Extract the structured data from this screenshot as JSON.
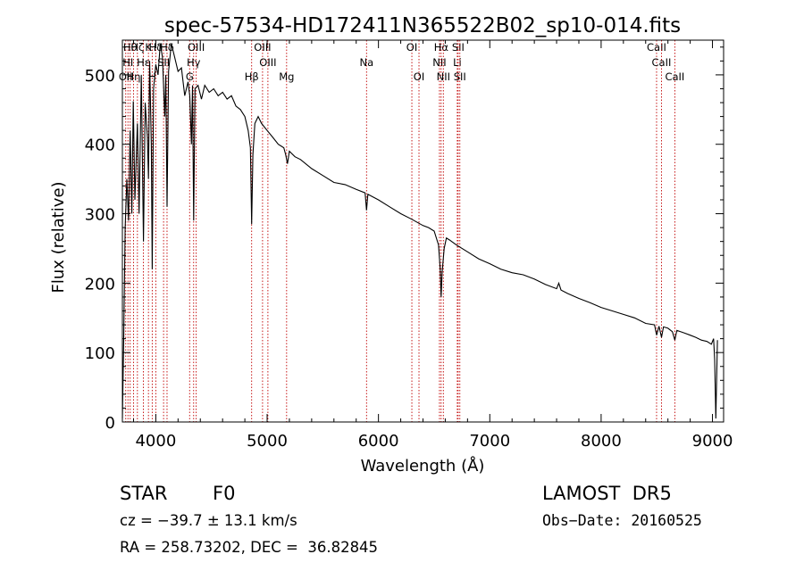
{
  "chart_data": {
    "type": "line",
    "title": "spec-57534-HD172411N365522B02_sp10-014.fits",
    "xlabel": "Wavelength (Å)",
    "ylabel": "Flux (relative)",
    "xlim": [
      3700,
      9100
    ],
    "ylim": [
      0,
      550
    ],
    "xticks": [
      4000,
      5000,
      6000,
      7000,
      8000,
      9000
    ],
    "yticks": [
      0,
      100,
      200,
      300,
      400,
      500
    ],
    "grid": false,
    "series": [
      {
        "color": "#000000",
        "points": [
          [
            3700,
            5
          ],
          [
            3712,
            120
          ],
          [
            3725,
            280
          ],
          [
            3740,
            350
          ],
          [
            3755,
            290
          ],
          [
            3770,
            420
          ],
          [
            3785,
            300
          ],
          [
            3798,
            462
          ],
          [
            3812,
            320
          ],
          [
            3835,
            430
          ],
          [
            3850,
            300
          ],
          [
            3870,
            500
          ],
          [
            3889,
            260
          ],
          [
            3905,
            460
          ],
          [
            3925,
            410
          ],
          [
            3934,
            350
          ],
          [
            3945,
            520
          ],
          [
            3960,
            400
          ],
          [
            3968,
            220
          ],
          [
            3980,
            480
          ],
          [
            4000,
            515
          ],
          [
            4020,
            500
          ],
          [
            4040,
            545
          ],
          [
            4060,
            525
          ],
          [
            4080,
            440
          ],
          [
            4090,
            500
          ],
          [
            4101,
            310
          ],
          [
            4115,
            505
          ],
          [
            4140,
            545
          ],
          [
            4170,
            525
          ],
          [
            4200,
            505
          ],
          [
            4230,
            510
          ],
          [
            4260,
            470
          ],
          [
            4290,
            490
          ],
          [
            4305,
            470
          ],
          [
            4320,
            400
          ],
          [
            4330,
            485
          ],
          [
            4340,
            290
          ],
          [
            4352,
            480
          ],
          [
            4380,
            485
          ],
          [
            4410,
            465
          ],
          [
            4440,
            485
          ],
          [
            4480,
            475
          ],
          [
            4520,
            480
          ],
          [
            4560,
            470
          ],
          [
            4600,
            475
          ],
          [
            4640,
            465
          ],
          [
            4680,
            470
          ],
          [
            4720,
            455
          ],
          [
            4760,
            450
          ],
          [
            4800,
            440
          ],
          [
            4830,
            420
          ],
          [
            4850,
            395
          ],
          [
            4861,
            285
          ],
          [
            4872,
            385
          ],
          [
            4890,
            430
          ],
          [
            4920,
            440
          ],
          [
            4950,
            430
          ],
          [
            5000,
            420
          ],
          [
            5050,
            410
          ],
          [
            5100,
            400
          ],
          [
            5150,
            395
          ],
          [
            5167,
            385
          ],
          [
            5183,
            372
          ],
          [
            5200,
            390
          ],
          [
            5250,
            382
          ],
          [
            5300,
            378
          ],
          [
            5400,
            365
          ],
          [
            5500,
            355
          ],
          [
            5600,
            345
          ],
          [
            5700,
            342
          ],
          [
            5800,
            335
          ],
          [
            5880,
            330
          ],
          [
            5893,
            305
          ],
          [
            5905,
            328
          ],
          [
            6000,
            320
          ],
          [
            6100,
            310
          ],
          [
            6200,
            300
          ],
          [
            6300,
            292
          ],
          [
            6400,
            283
          ],
          [
            6450,
            280
          ],
          [
            6500,
            275
          ],
          [
            6540,
            255
          ],
          [
            6555,
            220
          ],
          [
            6563,
            180
          ],
          [
            6572,
            215
          ],
          [
            6590,
            250
          ],
          [
            6610,
            265
          ],
          [
            6640,
            262
          ],
          [
            6700,
            255
          ],
          [
            6800,
            245
          ],
          [
            6900,
            235
          ],
          [
            7000,
            228
          ],
          [
            7100,
            220
          ],
          [
            7200,
            215
          ],
          [
            7300,
            212
          ],
          [
            7400,
            206
          ],
          [
            7500,
            198
          ],
          [
            7600,
            192
          ],
          [
            7620,
            200
          ],
          [
            7640,
            190
          ],
          [
            7700,
            185
          ],
          [
            7800,
            178
          ],
          [
            7900,
            172
          ],
          [
            8000,
            165
          ],
          [
            8100,
            160
          ],
          [
            8200,
            155
          ],
          [
            8300,
            150
          ],
          [
            8400,
            142
          ],
          [
            8480,
            140
          ],
          [
            8498,
            125
          ],
          [
            8520,
            138
          ],
          [
            8542,
            122
          ],
          [
            8560,
            137
          ],
          [
            8600,
            135
          ],
          [
            8640,
            130
          ],
          [
            8662,
            118
          ],
          [
            8680,
            132
          ],
          [
            8750,
            128
          ],
          [
            8800,
            125
          ],
          [
            8850,
            122
          ],
          [
            8900,
            118
          ],
          [
            8950,
            116
          ],
          [
            8990,
            112
          ],
          [
            9010,
            120
          ],
          [
            9020,
            90
          ],
          [
            9030,
            5
          ],
          [
            9045,
            118
          ]
        ]
      }
    ],
    "line_marks": [
      {
        "wl": 3750,
        "label": "HI",
        "ypos": 74
      },
      {
        "wl": 3730,
        "label": "OII",
        "ypos": 90
      },
      {
        "wl": 3770,
        "label": "Hθ",
        "ypos": 57
      },
      {
        "wl": 3800,
        "label": "Hη",
        "ypos": 90
      },
      {
        "wl": 3835,
        "label": "Hζ",
        "ypos": 57
      },
      {
        "wl": 3889,
        "label": "Hε",
        "ypos": 74
      },
      {
        "wl": 3934,
        "label": "K",
        "ypos": 57
      },
      {
        "wl": 3968,
        "label": "H",
        "ypos": 90
      },
      {
        "wl": 4000,
        "label": "Hδ",
        "ypos": 57
      },
      {
        "wl": 4070,
        "label": "SII",
        "ypos": 74
      },
      {
        "wl": 4101,
        "label": "Hδ",
        "ypos": 57
      },
      {
        "wl": 4304,
        "label": "G",
        "ypos": 90
      },
      {
        "wl": 4340,
        "label": "Hγ",
        "ypos": 74
      },
      {
        "wl": 4363,
        "label": "OIII",
        "ypos": 57
      },
      {
        "wl": 4861,
        "label": "Hβ",
        "ypos": 90
      },
      {
        "wl": 4959,
        "label": "OIII",
        "ypos": 57
      },
      {
        "wl": 5007,
        "label": "OIII",
        "ypos": 74
      },
      {
        "wl": 5175,
        "label": "Mg",
        "ypos": 90
      },
      {
        "wl": 5893,
        "label": "Na",
        "ypos": 74
      },
      {
        "wl": 6300,
        "label": "OI",
        "ypos": 57
      },
      {
        "wl": 6364,
        "label": "OI",
        "ypos": 90
      },
      {
        "wl": 6548,
        "label": "NII",
        "ypos": 74
      },
      {
        "wl": 6563,
        "label": "Hα",
        "ypos": 57
      },
      {
        "wl": 6583,
        "label": "NII",
        "ypos": 90
      },
      {
        "wl": 6708,
        "label": "Li",
        "ypos": 74
      },
      {
        "wl": 6716,
        "label": "SII",
        "ypos": 57
      },
      {
        "wl": 6731,
        "label": "SII",
        "ypos": 90
      },
      {
        "wl": 8498,
        "label": "CaII",
        "ypos": 57
      },
      {
        "wl": 8542,
        "label": "CaII",
        "ypos": 74
      },
      {
        "wl": 8662,
        "label": "CaII",
        "ypos": 90
      }
    ]
  },
  "info": {
    "object_type": "STAR",
    "subclass": "F0",
    "survey": "LAMOST  DR5",
    "velocity": "cz = −39.7 ± 13.1 km/s",
    "obs_date": "Obs−Date: 20160525",
    "coords": "RA = 258.73202, DEC =  36.82845"
  }
}
